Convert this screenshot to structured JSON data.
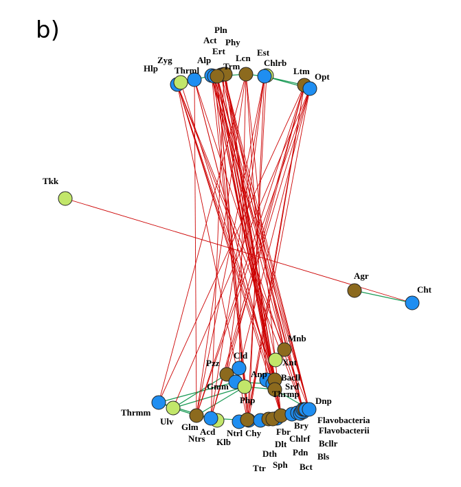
{
  "panel_label": "b)",
  "colors": {
    "blue": "#1f8ef1",
    "olive": "#8c6a1e",
    "lime": "#c2e66a",
    "edge_red": "#cc0000",
    "edge_green": "#1a9a55",
    "stroke": "#222222"
  },
  "nodes": [
    {
      "id": "Hlp",
      "label": "Hlp",
      "color": "blue"
    },
    {
      "id": "Zyg",
      "label": "Zyg",
      "color": "lime"
    },
    {
      "id": "Thrml",
      "label": "Thrml",
      "color": "blue"
    },
    {
      "id": "Alp",
      "label": "Alp",
      "color": "blue"
    },
    {
      "id": "Act",
      "label": "Act",
      "color": "blue"
    },
    {
      "id": "Pln",
      "label": "Pln",
      "color": "olive"
    },
    {
      "id": "Ert",
      "label": "Ert",
      "color": "olive"
    },
    {
      "id": "Phy",
      "label": "Phy",
      "color": "olive"
    },
    {
      "id": "Trm",
      "label": "Trm",
      "color": "olive"
    },
    {
      "id": "Lcn",
      "label": "Lcn",
      "color": "olive"
    },
    {
      "id": "Est",
      "label": "Est",
      "color": "lime"
    },
    {
      "id": "Chlrb",
      "label": "Chlrb",
      "color": "blue"
    },
    {
      "id": "Ltm",
      "label": "Ltm",
      "color": "olive"
    },
    {
      "id": "Opt",
      "label": "Opt",
      "color": "blue"
    },
    {
      "id": "Tkk",
      "label": "Tkk",
      "color": "lime"
    },
    {
      "id": "Agr",
      "label": "Agr",
      "color": "olive"
    },
    {
      "id": "Cht",
      "label": "Cht",
      "color": "blue"
    },
    {
      "id": "Mnb",
      "label": "Mnb",
      "color": "olive"
    },
    {
      "id": "Xnt",
      "label": "Xnt",
      "color": "lime"
    },
    {
      "id": "Cld",
      "label": "Cld",
      "color": "blue"
    },
    {
      "id": "Pzz",
      "label": "Pzz",
      "color": "olive"
    },
    {
      "id": "Anp",
      "label": "Anp",
      "color": "blue"
    },
    {
      "id": "Bacll",
      "label": "Bacll",
      "color": "olive"
    },
    {
      "id": "Srd",
      "label": "Srd",
      "color": "blue"
    },
    {
      "id": "Gmm",
      "label": "Gmm",
      "color": "blue"
    },
    {
      "id": "Php",
      "label": "Php",
      "color": "lime"
    },
    {
      "id": "Thrmp",
      "label": "Thrmp",
      "color": "olive"
    },
    {
      "id": "Dnp",
      "label": "Dnp",
      "color": "blue"
    },
    {
      "id": "Thrmm",
      "label": "Thrmm",
      "color": "blue"
    },
    {
      "id": "Ulv",
      "label": "Ulv",
      "color": "lime"
    },
    {
      "id": "Glm",
      "label": "Glm",
      "color": "olive"
    },
    {
      "id": "Ntrs",
      "label": "Ntrs",
      "color": "lime"
    },
    {
      "id": "Acd",
      "label": "Acd",
      "color": "blue"
    },
    {
      "id": "Klb",
      "label": "Klb",
      "color": "blue"
    },
    {
      "id": "Ntrl",
      "label": "Ntrl",
      "color": "blue"
    },
    {
      "id": "Chy",
      "label": "Chy",
      "color": "olive"
    },
    {
      "id": "Ttr",
      "label": "Ttr",
      "color": "blue"
    },
    {
      "id": "Dth",
      "label": "Dth",
      "color": "olive"
    },
    {
      "id": "Sph",
      "label": "Sph",
      "color": "blue"
    },
    {
      "id": "Dlt",
      "label": "Dlt",
      "color": "olive"
    },
    {
      "id": "Fbr",
      "label": "Fbr",
      "color": "olive"
    },
    {
      "id": "Chlrf",
      "label": "Chlrf",
      "color": "blue"
    },
    {
      "id": "Pdn",
      "label": "Pdn",
      "color": "blue"
    },
    {
      "id": "Bct",
      "label": "Bct",
      "color": "blue"
    },
    {
      "id": "Bry",
      "label": "Bry",
      "color": "blue"
    },
    {
      "id": "Flavobacteria",
      "label": "Flavobacteria",
      "color": "blue"
    },
    {
      "id": "Flavobacterii",
      "label": "Flavobacterii",
      "color": "olive"
    },
    {
      "id": "Bcllr",
      "label": "Bcllr",
      "color": "blue"
    },
    {
      "id": "Bls",
      "label": "Bls",
      "color": "blue"
    }
  ],
  "edges": [
    {
      "from": "Tkk",
      "to": "Cht",
      "color": "red"
    },
    {
      "from": "Agr",
      "to": "Cht",
      "color": "green"
    },
    {
      "from": "Hlp",
      "to": "Thrml",
      "color": "green"
    },
    {
      "from": "Thrml",
      "to": "Alp",
      "color": "green"
    },
    {
      "from": "Alp",
      "to": "Trm",
      "color": "green"
    },
    {
      "from": "Trm",
      "to": "Lcn",
      "color": "green"
    },
    {
      "from": "Lcn",
      "to": "Chlrb",
      "color": "green"
    },
    {
      "from": "Chlrb",
      "to": "Ltm",
      "color": "green"
    },
    {
      "from": "Ltm",
      "to": "Opt",
      "color": "green"
    },
    {
      "from": "Chlrb",
      "to": "Opt",
      "color": "green"
    },
    {
      "from": "Thrmm",
      "to": "Ulv",
      "color": "green"
    },
    {
      "from": "Ulv",
      "to": "Glm",
      "color": "green"
    },
    {
      "from": "Glm",
      "to": "Acd",
      "color": "green"
    },
    {
      "from": "Acd",
      "to": "Ntrl",
      "color": "green"
    },
    {
      "from": "Ntrl",
      "to": "Chy",
      "color": "green"
    },
    {
      "from": "Chy",
      "to": "Fbr",
      "color": "green"
    },
    {
      "from": "Fbr",
      "to": "Bry",
      "color": "green"
    },
    {
      "from": "Bry",
      "to": "Dnp",
      "color": "green"
    },
    {
      "from": "Thrmm",
      "to": "Gmm",
      "color": "green"
    },
    {
      "from": "Ulv",
      "to": "Pzz",
      "color": "green"
    },
    {
      "from": "Glm",
      "to": "Php",
      "color": "green"
    },
    {
      "from": "Gmm",
      "to": "Srd",
      "color": "green"
    },
    {
      "from": "Anp",
      "to": "Bacll",
      "color": "green"
    },
    {
      "from": "Php",
      "to": "Thrmp",
      "color": "green"
    },
    {
      "from": "Thrmp",
      "to": "Dnp",
      "color": "green"
    },
    {
      "from": "Ulv",
      "to": "Php",
      "color": "green"
    },
    {
      "from": "Thrmm",
      "to": "Acd",
      "color": "green"
    },
    {
      "from": "Hlp",
      "to": "Fbr",
      "color": "red"
    },
    {
      "from": "Hlp",
      "to": "Bry",
      "color": "red"
    },
    {
      "from": "Hlp",
      "to": "Thrmp",
      "color": "red"
    },
    {
      "from": "Hlp",
      "to": "Bacll",
      "color": "red"
    },
    {
      "from": "Hlp",
      "to": "Chy",
      "color": "red"
    },
    {
      "from": "Hlp",
      "to": "Dnp",
      "color": "red"
    },
    {
      "from": "Thrml",
      "to": "Fbr",
      "color": "red"
    },
    {
      "from": "Thrml",
      "to": "Bry",
      "color": "red"
    },
    {
      "from": "Thrml",
      "to": "Glm",
      "color": "red"
    },
    {
      "from": "Thrml",
      "to": "Srd",
      "color": "red"
    },
    {
      "from": "Alp",
      "to": "Bacll",
      "color": "red"
    },
    {
      "from": "Alp",
      "to": "Fbr",
      "color": "red"
    },
    {
      "from": "Alp",
      "to": "Mnb",
      "color": "red"
    },
    {
      "from": "Alp",
      "to": "Dnp",
      "color": "red"
    },
    {
      "from": "Alp",
      "to": "Ntrl",
      "color": "red"
    },
    {
      "from": "Act",
      "to": "Thrmp",
      "color": "red"
    },
    {
      "from": "Act",
      "to": "Bry",
      "color": "red"
    },
    {
      "from": "Act",
      "to": "Chy",
      "color": "red"
    },
    {
      "from": "Act",
      "to": "Srd",
      "color": "red"
    },
    {
      "from": "Pln",
      "to": "Fbr",
      "color": "red"
    },
    {
      "from": "Pln",
      "to": "Bacll",
      "color": "red"
    },
    {
      "from": "Pln",
      "to": "Dnp",
      "color": "red"
    },
    {
      "from": "Pln",
      "to": "Thrmp",
      "color": "red"
    },
    {
      "from": "Pln",
      "to": "Mnb",
      "color": "red"
    },
    {
      "from": "Pln",
      "to": "Acd",
      "color": "red"
    },
    {
      "from": "Pln",
      "to": "Bry",
      "color": "red"
    },
    {
      "from": "Trm",
      "to": "Fbr",
      "color": "red"
    },
    {
      "from": "Trm",
      "to": "Bacll",
      "color": "red"
    },
    {
      "from": "Trm",
      "to": "Bry",
      "color": "red"
    },
    {
      "from": "Trm",
      "to": "Dnp",
      "color": "red"
    },
    {
      "from": "Trm",
      "to": "Chy",
      "color": "red"
    },
    {
      "from": "Trm",
      "to": "Xnt",
      "color": "red"
    },
    {
      "from": "Trm",
      "to": "Ntrl",
      "color": "red"
    },
    {
      "from": "Trm",
      "to": "Thrmp",
      "color": "red"
    },
    {
      "from": "Lcn",
      "to": "Glm",
      "color": "red"
    },
    {
      "from": "Lcn",
      "to": "Thrmm",
      "color": "red"
    },
    {
      "from": "Lcn",
      "to": "Anp",
      "color": "red"
    },
    {
      "from": "Lcn",
      "to": "Cld",
      "color": "red"
    },
    {
      "from": "Lcn",
      "to": "Fbr",
      "color": "red"
    },
    {
      "from": "Chlrb",
      "to": "Glm",
      "color": "red"
    },
    {
      "from": "Chlrb",
      "to": "Ntrl",
      "color": "red"
    },
    {
      "from": "Chlrb",
      "to": "Pzz",
      "color": "red"
    },
    {
      "from": "Chlrb",
      "to": "Acd",
      "color": "red"
    },
    {
      "from": "Ltm",
      "to": "Acd",
      "color": "red"
    },
    {
      "from": "Ltm",
      "to": "Thrmm",
      "color": "red"
    },
    {
      "from": "Ltm",
      "to": "Glm",
      "color": "red"
    },
    {
      "from": "Ltm",
      "to": "Ntrl",
      "color": "red"
    },
    {
      "from": "Ltm",
      "to": "Chy",
      "color": "red"
    },
    {
      "from": "Ltm",
      "to": "Pzz",
      "color": "red"
    },
    {
      "from": "Opt",
      "to": "Ulv",
      "color": "red"
    },
    {
      "from": "Opt",
      "to": "Acd",
      "color": "red"
    },
    {
      "from": "Opt",
      "to": "Glm",
      "color": "red"
    },
    {
      "from": "Opt",
      "to": "Chy",
      "color": "red"
    },
    {
      "from": "Opt",
      "to": "Cld",
      "color": "red"
    },
    {
      "from": "Phy",
      "to": "Bacll",
      "color": "red"
    },
    {
      "from": "Phy",
      "to": "Fbr",
      "color": "red"
    },
    {
      "from": "Ert",
      "to": "Thrmp",
      "color": "red"
    },
    {
      "from": "Ert",
      "to": "Dnp",
      "color": "red"
    },
    {
      "from": "Zyg",
      "to": "Bacll",
      "color": "red"
    },
    {
      "from": "Est",
      "to": "Chy",
      "color": "red"
    }
  ]
}
